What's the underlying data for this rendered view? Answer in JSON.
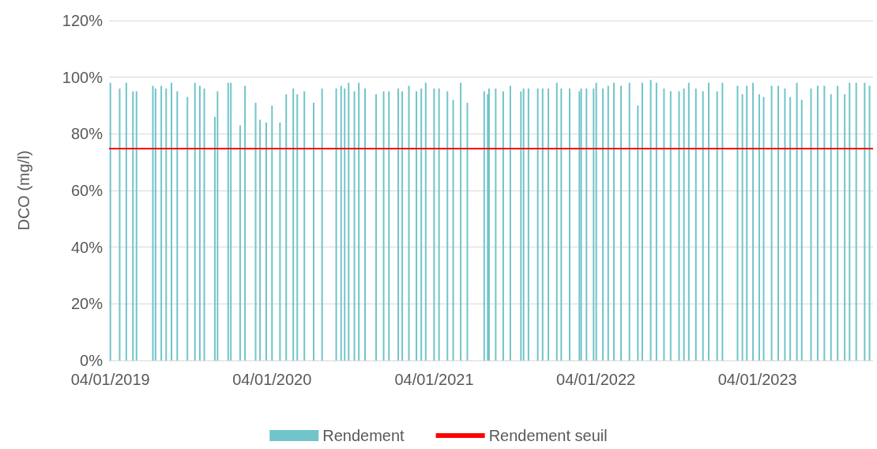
{
  "chart_data": {
    "type": "bar",
    "ylabel": "DCO (mg/l)",
    "x": [
      "2019-01-04",
      "2019-01-25",
      "2019-02-09",
      "2019-02-24",
      "2019-03-04",
      "2019-04-10",
      "2019-04-16",
      "2019-04-29",
      "2019-05-10",
      "2019-05-22",
      "2019-06-04",
      "2019-06-27",
      "2019-07-14",
      "2019-07-25",
      "2019-08-04",
      "2019-08-28",
      "2019-09-03",
      "2019-09-27",
      "2019-10-03",
      "2019-10-24",
      "2019-11-04",
      "2019-11-28",
      "2019-12-08",
      "2019-12-22",
      "2020-01-04",
      "2020-01-22",
      "2020-02-05",
      "2020-02-21",
      "2020-03-01",
      "2020-03-17",
      "2020-04-07",
      "2020-04-26",
      "2020-05-28",
      "2020-06-08",
      "2020-06-16",
      "2020-06-25",
      "2020-07-08",
      "2020-07-18",
      "2020-08-01",
      "2020-08-26",
      "2020-09-12",
      "2020-09-24",
      "2020-10-15",
      "2020-10-24",
      "2020-11-08",
      "2020-11-25",
      "2020-12-06",
      "2020-12-16",
      "2021-01-04",
      "2021-01-15",
      "2021-02-03",
      "2021-02-16",
      "2021-03-05",
      "2021-03-20",
      "2021-04-27",
      "2021-05-05",
      "2021-05-08",
      "2021-05-23",
      "2021-06-09",
      "2021-06-25",
      "2021-07-19",
      "2021-07-25",
      "2021-08-05",
      "2021-08-26",
      "2021-09-06",
      "2021-09-19",
      "2021-10-08",
      "2021-10-18",
      "2021-11-06",
      "2021-11-28",
      "2021-12-02",
      "2021-12-14",
      "2021-12-30",
      "2022-01-05",
      "2022-01-20",
      "2022-02-01",
      "2022-02-14",
      "2022-03-02",
      "2022-03-21",
      "2022-04-09",
      "2022-04-19",
      "2022-05-08",
      "2022-05-21",
      "2022-06-07",
      "2022-06-22",
      "2022-07-11",
      "2022-07-22",
      "2022-08-02",
      "2022-08-18",
      "2022-09-03",
      "2022-09-16",
      "2022-10-05",
      "2022-10-17",
      "2022-11-20",
      "2022-12-01",
      "2022-12-11",
      "2022-12-25",
      "2023-01-08",
      "2023-01-18",
      "2023-02-05",
      "2023-02-20",
      "2023-03-07",
      "2023-03-19",
      "2023-04-03",
      "2023-04-14",
      "2023-05-05",
      "2023-05-20",
      "2023-06-04",
      "2023-06-19",
      "2023-07-04",
      "2023-07-20",
      "2023-07-31",
      "2023-08-15",
      "2023-09-03",
      "2023-09-14"
    ],
    "series": [
      {
        "name": "Rendement",
        "color": "#71c4c9",
        "values": [
          98,
          96,
          98,
          95,
          95,
          97,
          96,
          97,
          96,
          98,
          95,
          93,
          98,
          97,
          96,
          86,
          95,
          98,
          98,
          83,
          97,
          91,
          85,
          84,
          90,
          84,
          94,
          96,
          94,
          95,
          91,
          96,
          96,
          97,
          96,
          98,
          95,
          98,
          96,
          94,
          95,
          95,
          96,
          95,
          97,
          95,
          96,
          98,
          96,
          96,
          95,
          92,
          98,
          91,
          95,
          94,
          96,
          96,
          95,
          97,
          95,
          96,
          96,
          96,
          96,
          96,
          98,
          96,
          96,
          95,
          96,
          96,
          96,
          98,
          96,
          97,
          98,
          97,
          98,
          90,
          98,
          99,
          98,
          96,
          95,
          95,
          96,
          98,
          96,
          95,
          98,
          95,
          98,
          97,
          94,
          97,
          98,
          94,
          93,
          97,
          97,
          96,
          93,
          98,
          92,
          96,
          97,
          97,
          94,
          97,
          94,
          98,
          98,
          98,
          97
        ]
      }
    ],
    "ref_lines": [
      {
        "axis": "y",
        "value": 75,
        "label": "Rendement seuil",
        "color": "#ff0000"
      }
    ],
    "xlim": [
      "2019-01-01",
      "2023-09-22"
    ],
    "xticks": [
      {
        "value": "2019-01-04",
        "label": "04/01/2019"
      },
      {
        "value": "2020-01-04",
        "label": "04/01/2020"
      },
      {
        "value": "2021-01-04",
        "label": "04/01/2021"
      },
      {
        "value": "2022-01-04",
        "label": "04/01/2022"
      },
      {
        "value": "2023-01-04",
        "label": "04/01/2023"
      }
    ],
    "ylim": [
      0,
      120
    ],
    "yticks": [
      {
        "value": 0,
        "label": "0%"
      },
      {
        "value": 20,
        "label": "20%"
      },
      {
        "value": 40,
        "label": "40%"
      },
      {
        "value": 60,
        "label": "60%"
      },
      {
        "value": 80,
        "label": "80%"
      },
      {
        "value": 100,
        "label": "100%"
      },
      {
        "value": 120,
        "label": "120%"
      }
    ],
    "grid": "y",
    "legend": "bottom"
  }
}
